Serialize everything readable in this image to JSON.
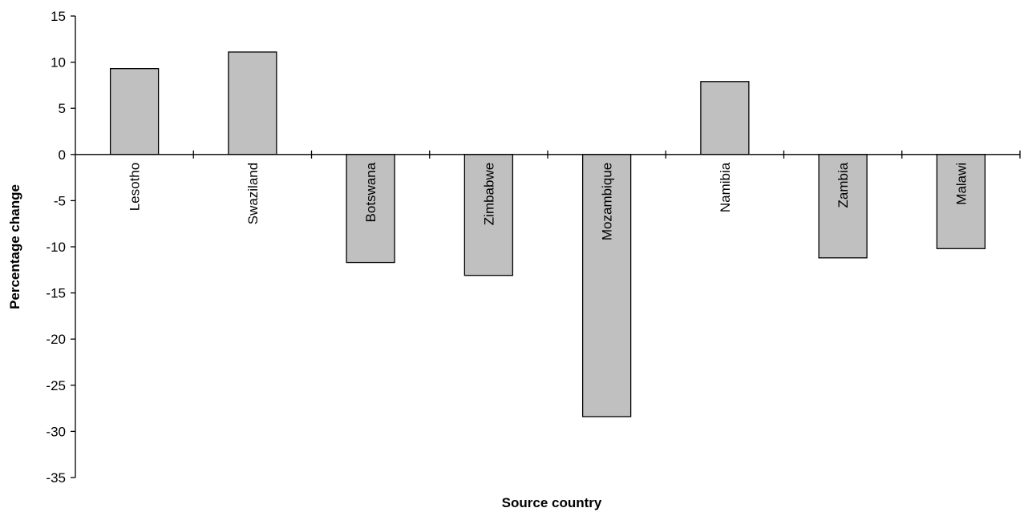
{
  "chart_data": {
    "type": "bar",
    "title": "",
    "xlabel": "Source country",
    "ylabel": "Percentage change",
    "categories": [
      "Lesotho",
      "Swaziland",
      "Botswana",
      "Zimbabwe",
      "Mozambique",
      "Namibia",
      "Zambia",
      "Malawi"
    ],
    "series": [
      {
        "values": [
          9.3,
          11.1,
          -11.7,
          -13.1,
          -28.4,
          7.9,
          -11.2,
          -10.2
        ]
      }
    ],
    "ylim": [
      -35,
      15
    ],
    "yticks": [
      "15",
      "10",
      "5",
      "0",
      "-5",
      "-10",
      "-15",
      "-20",
      "-25",
      "-30",
      "-35"
    ],
    "grid": false,
    "legend": "none",
    "colors": {
      "bar_fill": "#c0c0c0",
      "bar_stroke": "#000000",
      "axis": "#000000"
    }
  }
}
